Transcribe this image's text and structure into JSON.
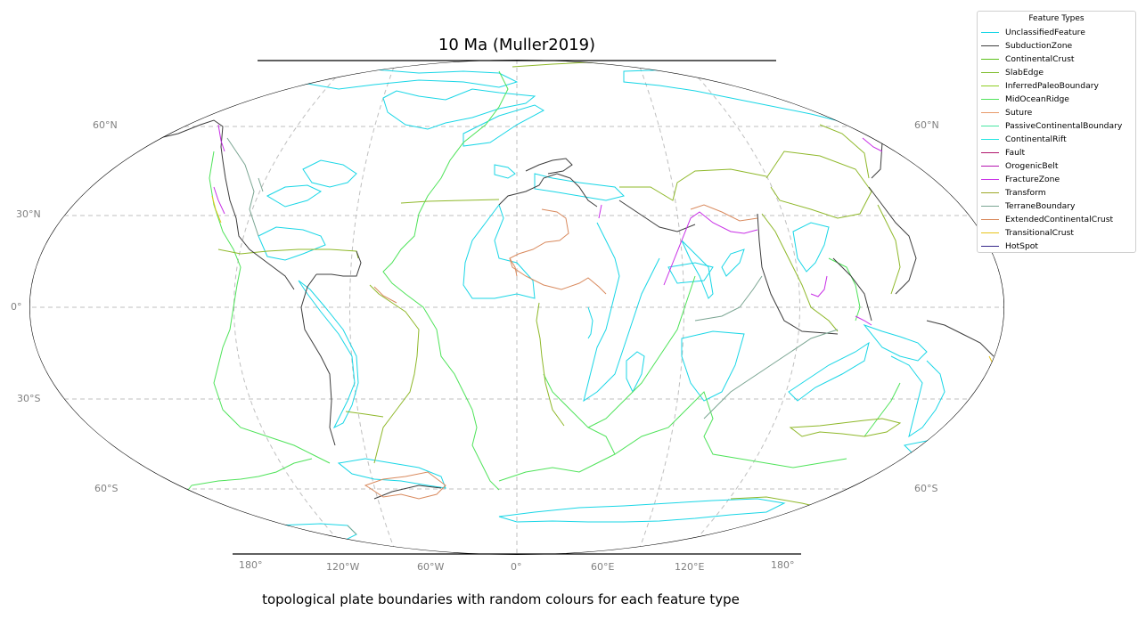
{
  "title": "10 Ma (Muller2019)",
  "caption": "topological plate boundaries with random colours for each feature type",
  "axes": {
    "lat_labels": [
      "60°N",
      "30°N",
      "0°",
      "30°S",
      "60°S"
    ],
    "lon_labels": [
      "180°",
      "120°W",
      "60°W",
      "0°",
      "60°E",
      "120°E",
      "180°"
    ]
  },
  "legend": {
    "title": "Feature Types",
    "items": [
      {
        "label": "UnclassifiedFeature",
        "color": "#19d6e6"
      },
      {
        "label": "SubductionZone",
        "color": "#3d3d3d"
      },
      {
        "label": "ContinentalCrust",
        "color": "#5cc11b"
      },
      {
        "label": "SlabEdge",
        "color": "#7fbe2e"
      },
      {
        "label": "InferredPaleoBoundary",
        "color": "#8fce22"
      },
      {
        "label": "MidOceanRidge",
        "color": "#4fe35a"
      },
      {
        "label": "Suture",
        "color": "#e89a6a"
      },
      {
        "label": "PassiveContinentalBoundary",
        "color": "#47e6a3"
      },
      {
        "label": "ContinentalRift",
        "color": "#1fe5e0"
      },
      {
        "label": "Fault",
        "color": "#b0156c"
      },
      {
        "label": "OrogenicBelt",
        "color": "#b515b0"
      },
      {
        "label": "FractureZone",
        "color": "#c82fe6"
      },
      {
        "label": "Transform",
        "color": "#9ea828"
      },
      {
        "label": "TerraneBoundary",
        "color": "#7aa592"
      },
      {
        "label": "ExtendedContinentalCrust",
        "color": "#d98a5e"
      },
      {
        "label": "TransitionalCrust",
        "color": "#e8c41a"
      },
      {
        "label": "HotSpot",
        "color": "#36288a"
      }
    ]
  }
}
